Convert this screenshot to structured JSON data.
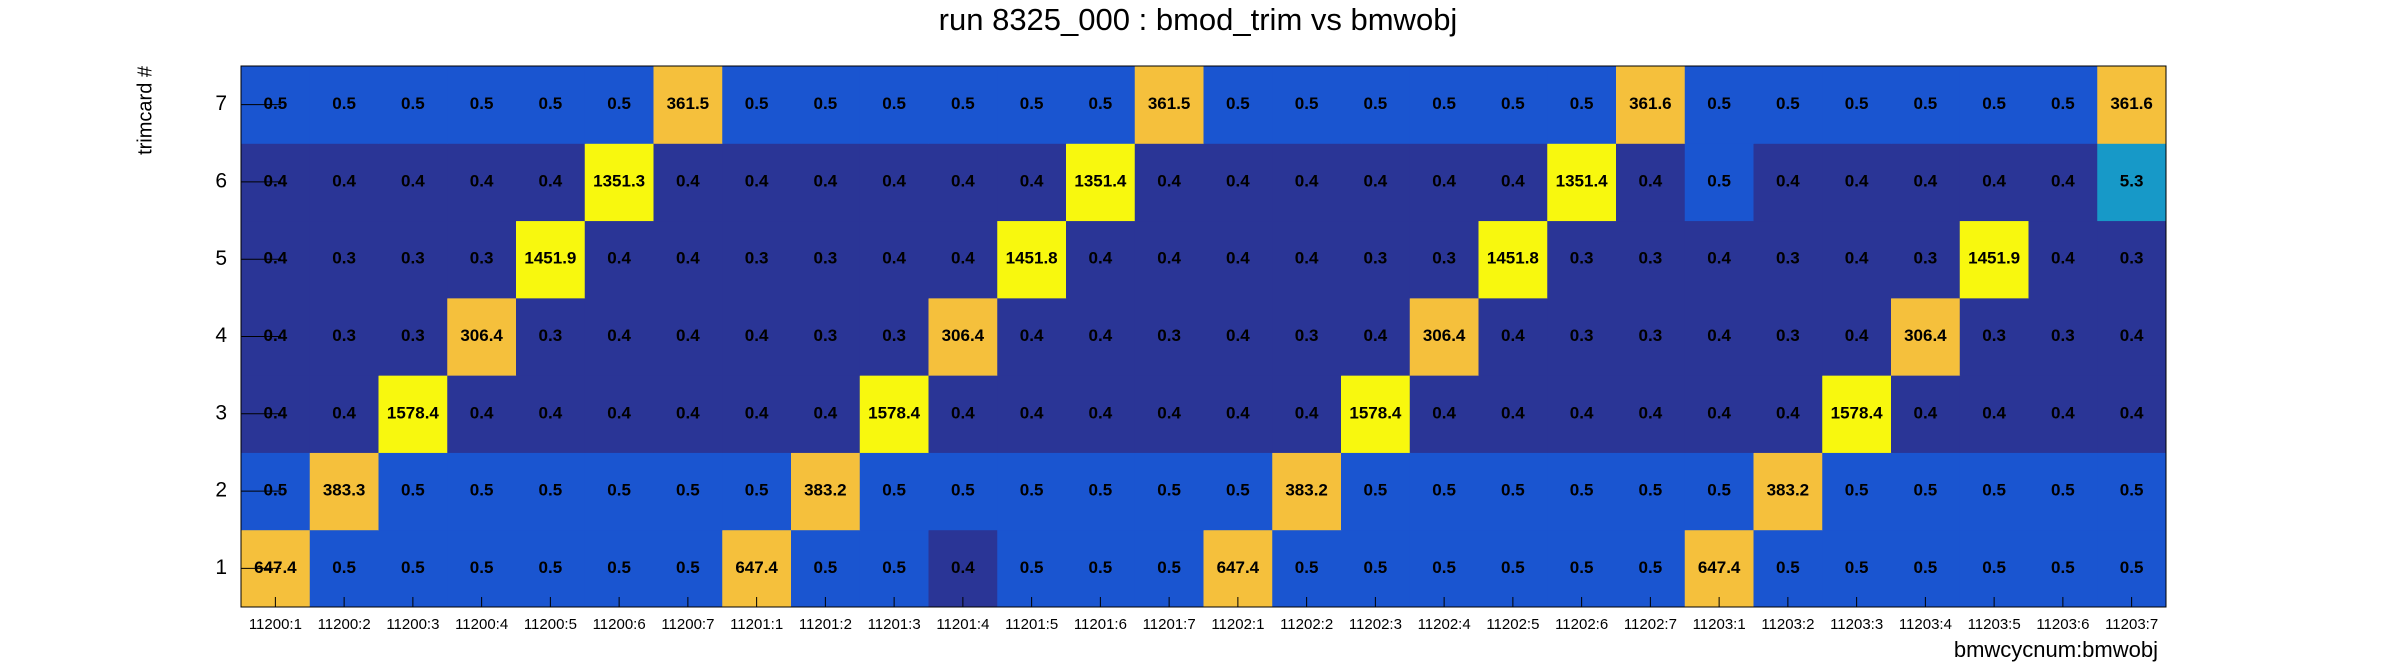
{
  "chart_data": {
    "type": "heatmap",
    "title": "run 8325_000 : bmod_trim vs bmwobj",
    "x_label": "bmwcycnum:bmwobj",
    "y_label": "trimcard #",
    "categories": [
      "11200:1",
      "11200:2",
      "11200:3",
      "11200:4",
      "11200:5",
      "11200:6",
      "11200:7",
      "11201:1",
      "11201:2",
      "11201:3",
      "11201:4",
      "11201:5",
      "11201:6",
      "11201:7",
      "11202:1",
      "11202:2",
      "11202:3",
      "11202:4",
      "11202:5",
      "11202:6",
      "11202:7",
      "11203:1",
      "11203:2",
      "11203:3",
      "11203:4",
      "11203:5",
      "11203:6",
      "11203:7"
    ],
    "y_categories": [
      1,
      2,
      3,
      4,
      5,
      6,
      7
    ],
    "values": [
      [
        647.4,
        0.5,
        0.5,
        0.5,
        0.5,
        0.5,
        0.5,
        647.4,
        0.5,
        0.5,
        0.4,
        0.5,
        0.5,
        0.5,
        647.4,
        0.5,
        0.5,
        0.5,
        0.5,
        0.5,
        0.5,
        647.4,
        0.5,
        0.5,
        0.5,
        0.5,
        0.5,
        0.5
      ],
      [
        0.5,
        383.3,
        0.5,
        0.5,
        0.5,
        0.5,
        0.5,
        0.5,
        383.2,
        0.5,
        0.5,
        0.5,
        0.5,
        0.5,
        0.5,
        383.2,
        0.5,
        0.5,
        0.5,
        0.5,
        0.5,
        0.5,
        383.2,
        0.5,
        0.5,
        0.5,
        0.5,
        0.5
      ],
      [
        0.4,
        0.4,
        1578.4,
        0.4,
        0.4,
        0.4,
        0.4,
        0.4,
        0.4,
        1578.4,
        0.4,
        0.4,
        0.4,
        0.4,
        0.4,
        0.4,
        1578.4,
        0.4,
        0.4,
        0.4,
        0.4,
        0.4,
        0.4,
        1578.4,
        0.4,
        0.4,
        0.4,
        0.4
      ],
      [
        0.4,
        0.3,
        0.3,
        306.4,
        0.3,
        0.4,
        0.4,
        0.4,
        0.3,
        0.3,
        306.4,
        0.4,
        0.4,
        0.3,
        0.4,
        0.3,
        0.4,
        306.4,
        0.4,
        0.3,
        0.3,
        0.4,
        0.3,
        0.4,
        306.4,
        0.3,
        0.3,
        0.4
      ],
      [
        0.4,
        0.3,
        0.3,
        0.3,
        1451.9,
        0.4,
        0.4,
        0.3,
        0.3,
        0.4,
        0.4,
        1451.8,
        0.4,
        0.4,
        0.4,
        0.4,
        0.3,
        0.3,
        1451.8,
        0.3,
        0.3,
        0.4,
        0.3,
        0.4,
        0.3,
        1451.9,
        0.4,
        0.3
      ],
      [
        0.4,
        0.4,
        0.4,
        0.4,
        0.4,
        1351.3,
        0.4,
        0.4,
        0.4,
        0.4,
        0.4,
        0.4,
        1351.4,
        0.4,
        0.4,
        0.4,
        0.4,
        0.4,
        0.4,
        1351.4,
        0.4,
        0.5,
        0.4,
        0.4,
        0.4,
        0.4,
        0.4,
        5.3
      ],
      [
        0.5,
        0.5,
        0.5,
        0.5,
        0.5,
        0.5,
        361.5,
        0.5,
        0.5,
        0.5,
        0.5,
        0.5,
        0.5,
        361.5,
        0.5,
        0.5,
        0.5,
        0.5,
        0.5,
        0.5,
        361.6,
        0.5,
        0.5,
        0.5,
        0.5,
        0.5,
        0.5,
        361.6
      ]
    ]
  }
}
